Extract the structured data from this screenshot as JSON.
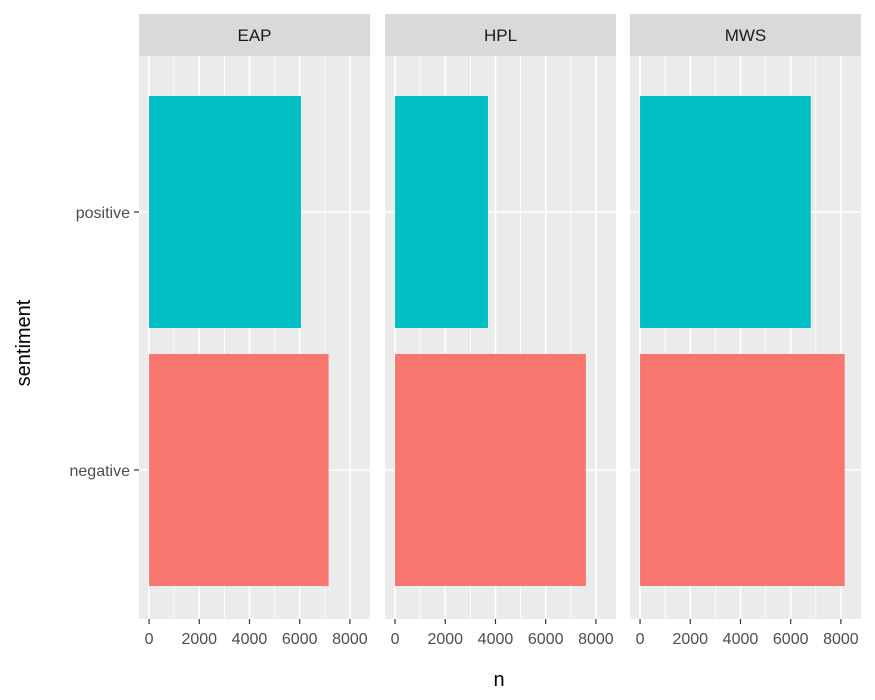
{
  "chart_data": {
    "type": "bar",
    "orientation": "horizontal",
    "facet_by": "author",
    "facets": [
      {
        "name": "EAP",
        "series": [
          {
            "category": "positive",
            "value": 6050,
            "color": "#00BFC4"
          },
          {
            "category": "negative",
            "value": 7150,
            "color": "#F8766D"
          }
        ]
      },
      {
        "name": "HPL",
        "series": [
          {
            "category": "positive",
            "value": 3700,
            "color": "#00BFC4"
          },
          {
            "category": "negative",
            "value": 7600,
            "color": "#F8766D"
          }
        ]
      },
      {
        "name": "MWS",
        "series": [
          {
            "category": "positive",
            "value": 6800,
            "color": "#00BFC4"
          },
          {
            "category": "negative",
            "value": 8150,
            "color": "#F8766D"
          }
        ]
      }
    ],
    "categories": [
      "positive",
      "negative"
    ],
    "xlabel": "n",
    "ylabel": "sentiment",
    "xlim": [
      -400,
      8800
    ],
    "x_ticks": [
      0,
      2000,
      4000,
      6000,
      8000
    ],
    "x_tick_labels": [
      "0",
      "2000",
      "4000",
      "6000",
      "8000"
    ],
    "grid": true,
    "panel_background": "#EBEBEB",
    "strip_background": "#D9D9D9",
    "legend": "none"
  }
}
